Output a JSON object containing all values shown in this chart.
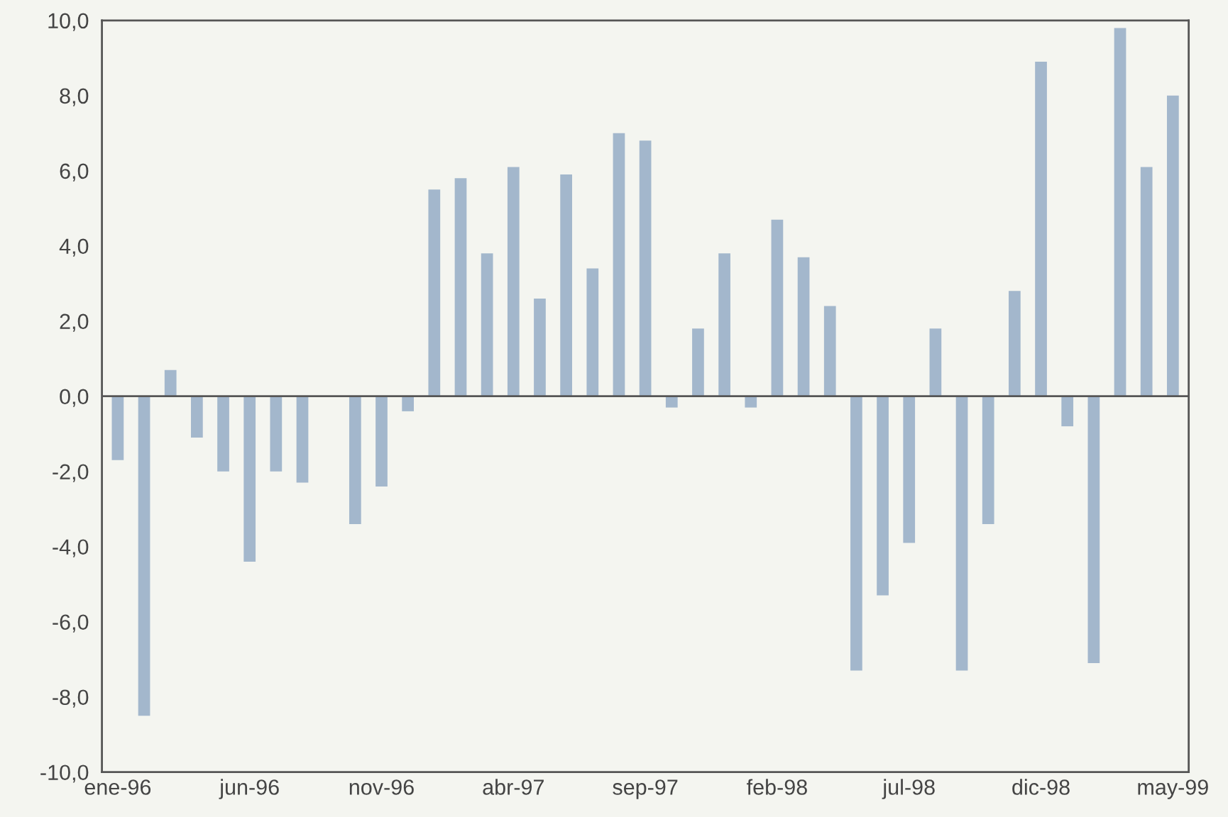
{
  "chart_data": {
    "type": "bar",
    "categories": [
      "ene-96",
      null,
      null,
      null,
      null,
      "jun-96",
      null,
      null,
      null,
      null,
      "nov-96",
      null,
      null,
      null,
      null,
      "abr-97",
      null,
      null,
      null,
      null,
      "sep-97",
      null,
      null,
      null,
      null,
      "feb-98",
      null,
      null,
      null,
      null,
      "jul-98",
      null,
      null,
      null,
      null,
      "dic-98",
      null,
      null,
      null,
      null,
      "may-99"
    ],
    "values": [
      -1.7,
      -8.5,
      0.7,
      -1.1,
      -2.0,
      -4.4,
      -2.0,
      -2.3,
      0.0,
      -3.4,
      -2.4,
      -0.4,
      5.5,
      5.8,
      3.8,
      6.1,
      2.6,
      5.9,
      3.4,
      7.0,
      6.8,
      -0.3,
      1.8,
      3.8,
      -0.3,
      4.7,
      3.7,
      2.4,
      -7.3,
      -5.3,
      -3.9,
      1.8,
      -7.3,
      -3.4,
      2.8,
      8.9,
      -0.8,
      -7.1,
      9.8,
      6.1,
      8.0
    ],
    "color": "#a3b7cc",
    "ylim": [
      -10,
      10
    ],
    "yticks": [
      {
        "value": -10,
        "label": "-10,0"
      },
      {
        "value": -8,
        "label": "-8,0"
      },
      {
        "value": -6,
        "label": "-6,0"
      },
      {
        "value": -4,
        "label": "-4,0"
      },
      {
        "value": -2,
        "label": "-2,0"
      },
      {
        "value": 0,
        "label": "0,0"
      },
      {
        "value": 2,
        "label": "2,0"
      },
      {
        "value": 4,
        "label": "4,0"
      },
      {
        "value": 6,
        "label": "6,0"
      },
      {
        "value": 8,
        "label": "8,0"
      },
      {
        "value": 10,
        "label": "10,0"
      }
    ],
    "ref_lines": [
      {
        "axis": "y",
        "value": 0,
        "color": "#555555"
      }
    ]
  }
}
